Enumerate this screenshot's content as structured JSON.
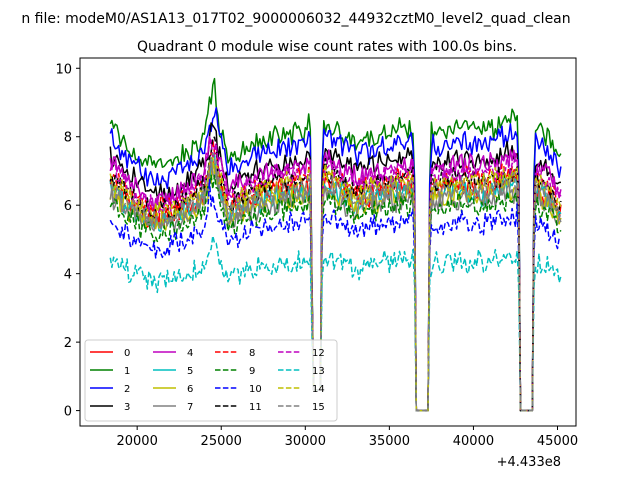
{
  "figure": {
    "suptitle": "n file: modeM0/AS1A13_017T02_9000006032_44932cztM0_level2_quad_clean",
    "offset_label": "+4.433e8"
  },
  "chart_data": {
    "type": "line",
    "title": "Quadrant 0 module wise count rates with 100.0s bins.",
    "xlabel": "",
    "ylabel": "",
    "x_offset": 443300000,
    "xlim": [
      16600,
      46100
    ],
    "ylim": [
      -0.45,
      10.3
    ],
    "xticks": [
      20000,
      25000,
      30000,
      35000,
      40000,
      45000
    ],
    "yticks": [
      0,
      2,
      4,
      6,
      8,
      10
    ],
    "grid": false,
    "legend": {
      "placement": "lower-left",
      "columns": 4
    },
    "x_range": [
      18400,
      45200
    ],
    "gaps": [
      {
        "start": 30450,
        "end": 30900,
        "min": 0.6
      },
      {
        "start": 36600,
        "end": 37300,
        "min": 0.0
      },
      {
        "start": 42800,
        "end": 43500,
        "min": 0.0
      }
    ],
    "shape": [
      [
        18400,
        0.98
      ],
      [
        19500,
        0.9
      ],
      [
        21000,
        0.83
      ],
      [
        22500,
        0.86
      ],
      [
        23800,
        0.93
      ],
      [
        24500,
        1.05
      ],
      [
        25500,
        0.87
      ],
      [
        27000,
        0.92
      ],
      [
        28500,
        0.95
      ],
      [
        30000,
        0.97
      ],
      [
        31200,
        1.0
      ],
      [
        33000,
        0.92
      ],
      [
        34500,
        0.95
      ],
      [
        36400,
        0.98
      ],
      [
        37600,
        0.95
      ],
      [
        39000,
        0.97
      ],
      [
        40500,
        0.96
      ],
      [
        42500,
        1.0
      ],
      [
        43700,
        0.97
      ],
      [
        44500,
        0.93
      ],
      [
        45200,
        0.85
      ]
    ],
    "series": [
      {
        "name": "0",
        "color": "#ff0000",
        "dash": "solid",
        "level": 6.7
      },
      {
        "name": "1",
        "color": "#008000",
        "dash": "solid",
        "level": 8.5
      },
      {
        "name": "2",
        "color": "#0000ff",
        "dash": "solid",
        "level": 8.1
      },
      {
        "name": "3",
        "color": "#000000",
        "dash": "solid",
        "level": 7.6
      },
      {
        "name": "4",
        "color": "#bf00bf",
        "dash": "solid",
        "level": 7.4
      },
      {
        "name": "5",
        "color": "#00bfbf",
        "dash": "solid",
        "level": 6.6
      },
      {
        "name": "6",
        "color": "#bfbf00",
        "dash": "solid",
        "level": 6.5
      },
      {
        "name": "7",
        "color": "#808080",
        "dash": "solid",
        "level": 6.4
      },
      {
        "name": "8",
        "color": "#ff0000",
        "dash": "dashed",
        "level": 7.0
      },
      {
        "name": "9",
        "color": "#008000",
        "dash": "dashed",
        "level": 6.2
      },
      {
        "name": "10",
        "color": "#0000ff",
        "dash": "dashed",
        "level": 5.7
      },
      {
        "name": "11",
        "color": "#000000",
        "dash": "dashed",
        "level": 7.0
      },
      {
        "name": "12",
        "color": "#bf00bf",
        "dash": "dashed",
        "level": 7.2
      },
      {
        "name": "13",
        "color": "#00bfbf",
        "dash": "dashed",
        "level": 4.5
      },
      {
        "name": "14",
        "color": "#bfbf00",
        "dash": "dashed",
        "level": 6.9
      },
      {
        "name": "15",
        "color": "#808080",
        "dash": "dashed",
        "level": 6.7
      }
    ]
  }
}
